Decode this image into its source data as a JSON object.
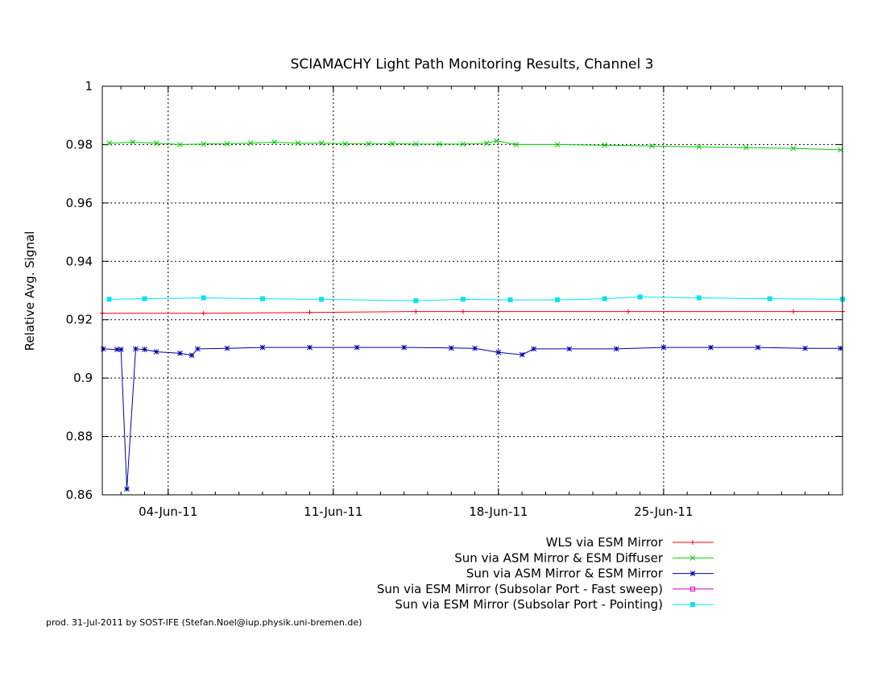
{
  "chart_data": {
    "type": "line",
    "title": "SCIAMACHY Light Path Monitoring Results, Channel 3",
    "xlabel": "",
    "ylabel": "Relative Avg. Signal",
    "ylim": [
      0.86,
      1.0
    ],
    "xlim": [
      "2011-06-01T05:00",
      "2011-07-02T14:00"
    ],
    "yticks": [
      "0.86",
      "0.88",
      "0.9",
      "0.92",
      "0.94",
      "0.96",
      "0.98",
      "1"
    ],
    "xticks": [
      {
        "label": "04-Jun-11",
        "date": "2011-06-04"
      },
      {
        "label": "11-Jun-11",
        "date": "2011-06-11"
      },
      {
        "label": "18-Jun-11",
        "date": "2011-06-18"
      },
      {
        "label": "25-Jun-11",
        "date": "2011-06-25"
      }
    ],
    "grid": true,
    "legend_position": "below-right",
    "series": [
      {
        "name": "WLS via ESM Mirror",
        "color": "#ff0000",
        "marker": "plus",
        "points": [
          [
            "2011-06-01T05:00",
            0.9222
          ],
          [
            "2011-06-05T12:00",
            0.9222
          ],
          [
            "2011-06-10T00:00",
            0.9225
          ],
          [
            "2011-06-14T12:00",
            0.9228
          ],
          [
            "2011-06-16T12:00",
            0.9228
          ],
          [
            "2011-06-23T12:00",
            0.9228
          ],
          [
            "2011-06-30T12:00",
            0.9228
          ],
          [
            "2011-07-02T14:00",
            0.9228
          ]
        ]
      },
      {
        "name": "Sun via ASM Mirror & ESM Diffuser",
        "color": "#00cc00",
        "marker": "cross",
        "points": [
          [
            "2011-06-01T12:00",
            0.9805
          ],
          [
            "2011-06-02T12:00",
            0.9808
          ],
          [
            "2011-06-03T12:00",
            0.9805
          ],
          [
            "2011-06-04T12:00",
            0.98
          ],
          [
            "2011-06-05T12:00",
            0.9802
          ],
          [
            "2011-06-06T12:00",
            0.9803
          ],
          [
            "2011-06-07T12:00",
            0.9805
          ],
          [
            "2011-06-08T12:00",
            0.9808
          ],
          [
            "2011-06-09T12:00",
            0.9805
          ],
          [
            "2011-06-10T12:00",
            0.9805
          ],
          [
            "2011-06-11T12:00",
            0.9803
          ],
          [
            "2011-06-12T12:00",
            0.9803
          ],
          [
            "2011-06-13T12:00",
            0.9803
          ],
          [
            "2011-06-14T12:00",
            0.9802
          ],
          [
            "2011-06-15T12:00",
            0.9802
          ],
          [
            "2011-06-16T12:00",
            0.9802
          ],
          [
            "2011-06-17T12:00",
            0.9805
          ],
          [
            "2011-06-17T22:00",
            0.9813
          ],
          [
            "2011-06-18T18:00",
            0.98
          ],
          [
            "2011-06-20T12:00",
            0.98
          ],
          [
            "2011-06-22T12:00",
            0.9798
          ],
          [
            "2011-06-24T12:00",
            0.9795
          ],
          [
            "2011-06-26T12:00",
            0.9792
          ],
          [
            "2011-06-28T12:00",
            0.979
          ],
          [
            "2011-06-30T12:00",
            0.9787
          ],
          [
            "2011-07-02T12:00",
            0.9782
          ]
        ]
      },
      {
        "name": "Sun via ASM Mirror & ESM Mirror",
        "color": "#0000aa",
        "marker": "star",
        "points": [
          [
            "2011-06-01T06:00",
            0.91
          ],
          [
            "2011-06-01T20:00",
            0.9098
          ],
          [
            "2011-06-02T00:00",
            0.9098
          ],
          [
            "2011-06-02T06:00",
            0.862
          ],
          [
            "2011-06-02T15:00",
            0.91
          ],
          [
            "2011-06-03T00:00",
            0.9098
          ],
          [
            "2011-06-03T12:00",
            0.909
          ],
          [
            "2011-06-04T12:00",
            0.9085
          ],
          [
            "2011-06-05T00:00",
            0.9078
          ],
          [
            "2011-06-05T06:00",
            0.91
          ],
          [
            "2011-06-06T12:00",
            0.9102
          ],
          [
            "2011-06-08T00:00",
            0.9105
          ],
          [
            "2011-06-10T00:00",
            0.9105
          ],
          [
            "2011-06-12T00:00",
            0.9105
          ],
          [
            "2011-06-14T00:00",
            0.9105
          ],
          [
            "2011-06-16T00:00",
            0.9103
          ],
          [
            "2011-06-17T00:00",
            0.9102
          ],
          [
            "2011-06-18T00:00",
            0.9088
          ],
          [
            "2011-06-19T00:00",
            0.908
          ],
          [
            "2011-06-19T12:00",
            0.91
          ],
          [
            "2011-06-21T00:00",
            0.91
          ],
          [
            "2011-06-23T00:00",
            0.91
          ],
          [
            "2011-06-25T00:00",
            0.9105
          ],
          [
            "2011-06-27T00:00",
            0.9105
          ],
          [
            "2011-06-29T00:00",
            0.9105
          ],
          [
            "2011-07-01T00:00",
            0.9102
          ],
          [
            "2011-07-02T12:00",
            0.9102
          ]
        ]
      },
      {
        "name": "Sun via ESM Mirror (Subsolar Port - Fast sweep)",
        "color": "#cc00cc",
        "marker": "square-open",
        "points": []
      },
      {
        "name": "Sun via ESM Mirror (Subsolar Port - Pointing)",
        "color": "#00e5ee",
        "marker": "square-filled",
        "points": [
          [
            "2011-06-01T12:00",
            0.927
          ],
          [
            "2011-06-03T00:00",
            0.9272
          ],
          [
            "2011-06-05T12:00",
            0.9275
          ],
          [
            "2011-06-08T00:00",
            0.9272
          ],
          [
            "2011-06-10T12:00",
            0.927
          ],
          [
            "2011-06-14T12:00",
            0.9265
          ],
          [
            "2011-06-16T12:00",
            0.927
          ],
          [
            "2011-06-18T12:00",
            0.9268
          ],
          [
            "2011-06-20T12:00",
            0.9268
          ],
          [
            "2011-06-22T12:00",
            0.9272
          ],
          [
            "2011-06-24T00:00",
            0.9278
          ],
          [
            "2011-06-26T12:00",
            0.9275
          ],
          [
            "2011-06-29T12:00",
            0.9272
          ],
          [
            "2011-07-02T14:00",
            0.927
          ]
        ]
      }
    ],
    "footer": "prod. 31-Jul-2011 by SOST-IFE (Stefan.Noel@iup.physik.uni-bremen.de)"
  }
}
